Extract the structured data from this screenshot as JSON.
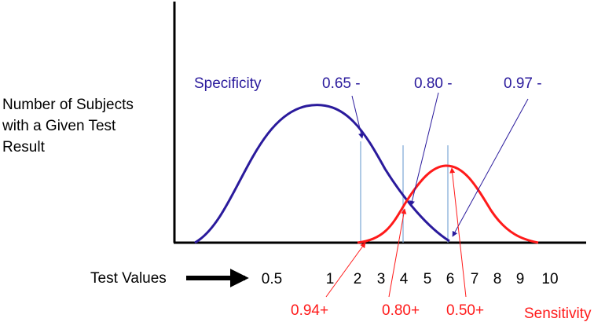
{
  "y_axis_label": [
    "Number of Subjects",
    "with a Given Test",
    "Result"
  ],
  "x_axis_label": "Test Values",
  "tick_labels": [
    "0.5",
    "1",
    "2",
    "3",
    "4",
    "5",
    "6",
    "7",
    "8",
    "9",
    "10"
  ],
  "legend": {
    "specificity": "Specificity",
    "sensitivity": "Sensitivity"
  },
  "specificity_labels": [
    "0.65 -",
    "0.80 -",
    "0.97 -"
  ],
  "sensitivity_labels": [
    "0.94+",
    "0.80+",
    "0.50+"
  ],
  "colors": {
    "specificity": "#2a1a9c",
    "sensitivity": "#ff1a1a",
    "cutoff": "#7aa6d4",
    "axis": "#000000"
  }
}
